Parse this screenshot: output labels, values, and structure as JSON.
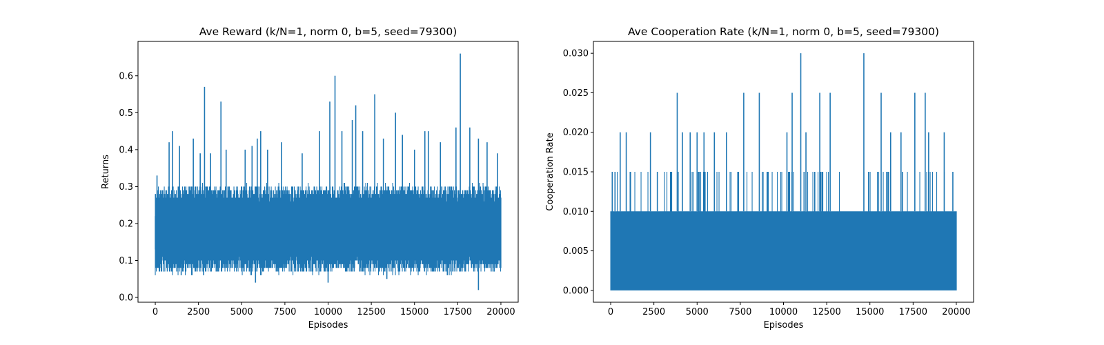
{
  "chart_data": [
    {
      "type": "line",
      "title": "Ave Reward (k/N=1, norm 0, b=5, seed=79300)",
      "xlabel": "Episodes",
      "ylabel": "Returns",
      "xlim": [
        -1000,
        21000
      ],
      "ylim": [
        -0.013,
        0.693
      ],
      "xticks": [
        0,
        2500,
        5000,
        7500,
        10000,
        12500,
        15000,
        17500,
        20000
      ],
      "xtick_labels": [
        "0",
        "2500",
        "5000",
        "7500",
        "10000",
        "12500",
        "15000",
        "17500",
        "20000"
      ],
      "yticks": [
        0.0,
        0.1,
        0.2,
        0.3,
        0.4,
        0.5,
        0.6
      ],
      "ytick_labels": [
        "0.0",
        "0.1",
        "0.2",
        "0.3",
        "0.4",
        "0.5",
        "0.6"
      ],
      "grid": false,
      "color": "#1f77b4",
      "series": [
        {
          "x_start": 0,
          "x_end": 20000,
          "n_points": 20000,
          "band_low": 0.1,
          "band_high": 0.27,
          "typical_mean": 0.18,
          "min_value": 0.02,
          "max_value": 0.66,
          "spikes": [
            {
              "x": 100,
              "y": 0.33
            },
            {
              "x": 800,
              "y": 0.42
            },
            {
              "x": 1000,
              "y": 0.45
            },
            {
              "x": 1400,
              "y": 0.41
            },
            {
              "x": 2200,
              "y": 0.43
            },
            {
              "x": 2600,
              "y": 0.39
            },
            {
              "x": 2850,
              "y": 0.57
            },
            {
              "x": 3200,
              "y": 0.39
            },
            {
              "x": 3800,
              "y": 0.53
            },
            {
              "x": 4100,
              "y": 0.4
            },
            {
              "x": 5200,
              "y": 0.4
            },
            {
              "x": 5600,
              "y": 0.41
            },
            {
              "x": 5900,
              "y": 0.43
            },
            {
              "x": 6100,
              "y": 0.45
            },
            {
              "x": 6500,
              "y": 0.4
            },
            {
              "x": 7300,
              "y": 0.42
            },
            {
              "x": 8500,
              "y": 0.39
            },
            {
              "x": 9500,
              "y": 0.45
            },
            {
              "x": 10100,
              "y": 0.53
            },
            {
              "x": 10400,
              "y": 0.6
            },
            {
              "x": 10800,
              "y": 0.45
            },
            {
              "x": 11400,
              "y": 0.48
            },
            {
              "x": 11600,
              "y": 0.52
            },
            {
              "x": 12000,
              "y": 0.45
            },
            {
              "x": 12700,
              "y": 0.55
            },
            {
              "x": 13200,
              "y": 0.43
            },
            {
              "x": 13900,
              "y": 0.5
            },
            {
              "x": 14300,
              "y": 0.44
            },
            {
              "x": 15000,
              "y": 0.4
            },
            {
              "x": 15600,
              "y": 0.45
            },
            {
              "x": 15800,
              "y": 0.45
            },
            {
              "x": 16500,
              "y": 0.42
            },
            {
              "x": 17400,
              "y": 0.46
            },
            {
              "x": 17650,
              "y": 0.66
            },
            {
              "x": 18200,
              "y": 0.46
            },
            {
              "x": 18700,
              "y": 0.43
            },
            {
              "x": 19200,
              "y": 0.42
            },
            {
              "x": 19800,
              "y": 0.39
            }
          ],
          "dips": [
            {
              "x": 500,
              "y": 0.07
            },
            {
              "x": 1500,
              "y": 0.06
            },
            {
              "x": 2800,
              "y": 0.06
            },
            {
              "x": 5800,
              "y": 0.04
            },
            {
              "x": 10000,
              "y": 0.04
            },
            {
              "x": 13400,
              "y": 0.05
            },
            {
              "x": 16900,
              "y": 0.06
            },
            {
              "x": 18700,
              "y": 0.02
            },
            {
              "x": 19600,
              "y": 0.07
            }
          ]
        }
      ]
    },
    {
      "type": "line",
      "title": "Ave Cooperation Rate (k/N=1, norm 0, b=5, seed=79300)",
      "xlabel": "Episodes",
      "ylabel": "Cooperation Rate",
      "xlim": [
        -1000,
        21000
      ],
      "ylim": [
        -0.0015,
        0.0315
      ],
      "xticks": [
        0,
        2500,
        5000,
        7500,
        10000,
        12500,
        15000,
        17500,
        20000
      ],
      "xtick_labels": [
        "0",
        "2500",
        "5000",
        "7500",
        "10000",
        "12500",
        "15000",
        "17500",
        "20000"
      ],
      "yticks": [
        0.0,
        0.005,
        0.01,
        0.015,
        0.02,
        0.025,
        0.03
      ],
      "ytick_labels": [
        "0.000",
        "0.005",
        "0.010",
        "0.015",
        "0.020",
        "0.025",
        "0.030"
      ],
      "grid": false,
      "color": "#1f77b4",
      "series": [
        {
          "x_start": 0,
          "x_end": 20000,
          "n_points": 20000,
          "band_low": 0.0,
          "band_high": 0.01,
          "typical_mean": 0.003,
          "min_value": 0.0,
          "max_value": 0.03,
          "spikes": [
            {
              "x": 250,
              "y": 0.015
            },
            {
              "x": 550,
              "y": 0.02
            },
            {
              "x": 900,
              "y": 0.02
            },
            {
              "x": 2300,
              "y": 0.02
            },
            {
              "x": 2700,
              "y": 0.015
            },
            {
              "x": 3850,
              "y": 0.025
            },
            {
              "x": 4150,
              "y": 0.02
            },
            {
              "x": 4600,
              "y": 0.02
            },
            {
              "x": 5000,
              "y": 0.02
            },
            {
              "x": 5400,
              "y": 0.02
            },
            {
              "x": 6000,
              "y": 0.02
            },
            {
              "x": 6700,
              "y": 0.02
            },
            {
              "x": 7700,
              "y": 0.025
            },
            {
              "x": 8600,
              "y": 0.025
            },
            {
              "x": 10200,
              "y": 0.02
            },
            {
              "x": 10500,
              "y": 0.025
            },
            {
              "x": 11000,
              "y": 0.03
            },
            {
              "x": 11300,
              "y": 0.02
            },
            {
              "x": 12100,
              "y": 0.025
            },
            {
              "x": 12700,
              "y": 0.025
            },
            {
              "x": 14650,
              "y": 0.03
            },
            {
              "x": 15650,
              "y": 0.025
            },
            {
              "x": 16200,
              "y": 0.02
            },
            {
              "x": 16800,
              "y": 0.02
            },
            {
              "x": 17600,
              "y": 0.025
            },
            {
              "x": 18200,
              "y": 0.025
            },
            {
              "x": 18400,
              "y": 0.02
            },
            {
              "x": 19300,
              "y": 0.02
            },
            {
              "x": 19800,
              "y": 0.015
            }
          ],
          "dips": []
        }
      ]
    }
  ]
}
